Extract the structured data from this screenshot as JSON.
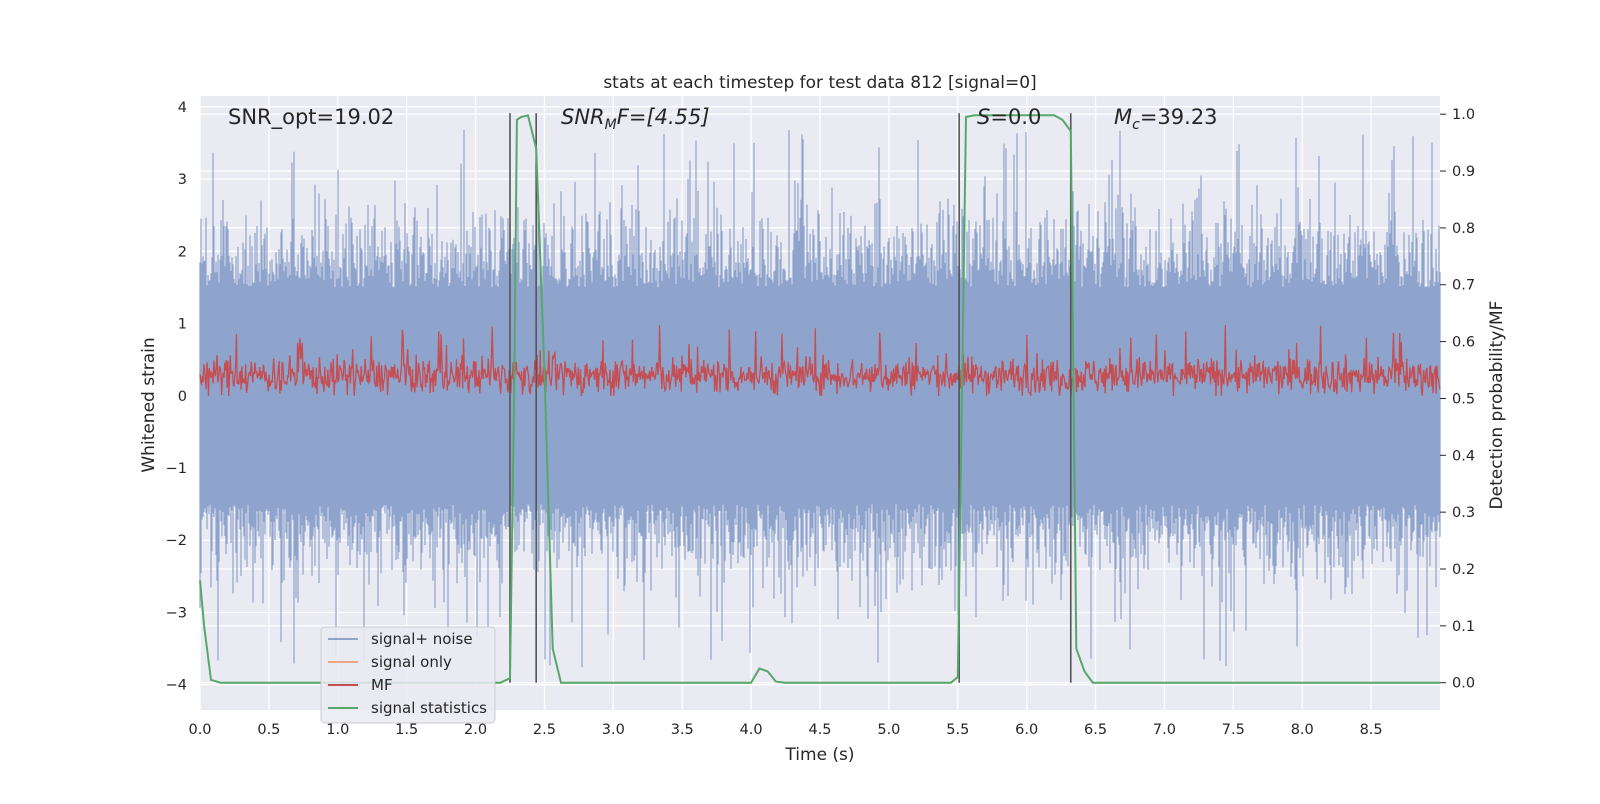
{
  "chart_data": {
    "type": "line",
    "title": "stats at each timestep for test data 812 [signal=0]",
    "xlabel": "Time (s)",
    "ylabel_left": "Whitened strain",
    "ylabel_right": "Detection probability/MF",
    "xlim": [
      0.0,
      9.0
    ],
    "ylim_left": [
      -4.35,
      4.15
    ],
    "ylim_right": [
      -0.048,
      1.032
    ],
    "x_ticks": [
      "0.0",
      "0.5",
      "1.0",
      "1.5",
      "2.0",
      "2.5",
      "3.0",
      "3.5",
      "4.0",
      "4.5",
      "5.0",
      "5.5",
      "6.0",
      "6.5",
      "7.0",
      "7.5",
      "8.0",
      "8.5"
    ],
    "y_ticks_left": [
      "−4",
      "−3",
      "−2",
      "−1",
      "0",
      "1",
      "2",
      "3",
      "4"
    ],
    "y_ticks_right": [
      "0.0",
      "0.1",
      "0.2",
      "0.3",
      "0.4",
      "0.5",
      "0.6",
      "0.7",
      "0.8",
      "0.9",
      "1.0"
    ],
    "grid": true,
    "legend_position": "lower-left",
    "annotations": {
      "snr_opt": "SNR_opt=19.02",
      "snr_mf_base": "SNR",
      "snr_mf_sub": "M",
      "snr_mf_rest": "F=[4.55]",
      "s_italic": "S",
      "s_rest": "=0.0",
      "mc_base": "M",
      "mc_sub": "c",
      "mc_rest": "=39.23"
    },
    "vertical_lines_time": [
      2.25,
      2.44,
      5.51,
      6.32
    ],
    "series": [
      {
        "name": "signal+ noise",
        "color": "#8fa4cc",
        "axis": "left",
        "description": "noise band approx uniform over full time range",
        "envelope_min": -4.0,
        "envelope_max": 3.8,
        "core_range": [
          -1.5,
          1.5
        ]
      },
      {
        "name": "signal only",
        "color": "#e9a68a",
        "axis": "left",
        "x": [],
        "y": []
      },
      {
        "name": "MF",
        "color": "#c44e52",
        "axis": "left",
        "description": "matched filter band",
        "center": 0.28,
        "range": [
          0.0,
          1.0
        ]
      },
      {
        "name": "signal statistics",
        "color": "#55a868",
        "axis": "right",
        "x": [
          0.0,
          0.03,
          0.08,
          0.15,
          2.18,
          2.25,
          2.28,
          2.3,
          2.33,
          2.38,
          2.44,
          2.5,
          2.56,
          2.62,
          4.0,
          4.06,
          4.12,
          4.18,
          4.25,
          5.45,
          5.5,
          5.53,
          5.56,
          5.62,
          6.2,
          6.26,
          6.32,
          6.36,
          6.42,
          6.48,
          9.0
        ],
        "y": [
          0.18,
          0.1,
          0.005,
          0.0,
          0.0,
          0.008,
          0.5,
          0.99,
          0.995,
          0.998,
          0.94,
          0.55,
          0.06,
          0.0,
          0.0,
          0.025,
          0.02,
          0.002,
          0.0,
          0.0,
          0.01,
          0.5,
          0.995,
          0.998,
          0.998,
          0.99,
          0.97,
          0.06,
          0.02,
          0.0,
          0.0
        ]
      }
    ]
  }
}
